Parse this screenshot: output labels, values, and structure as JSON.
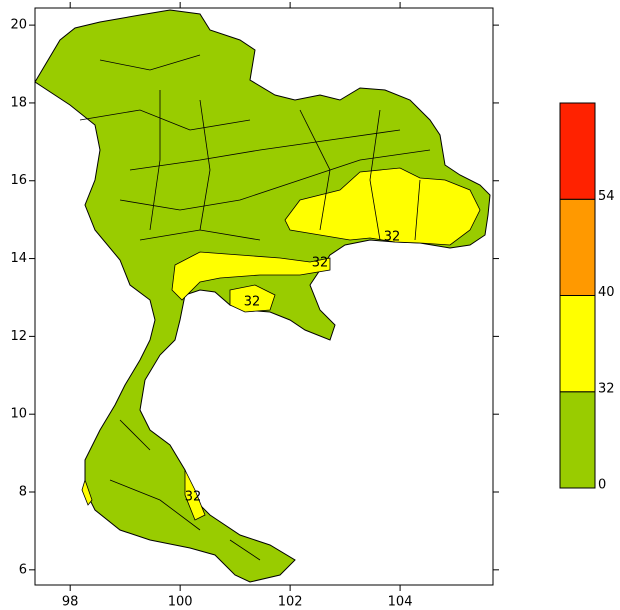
{
  "map": {
    "xlim": [
      97.36,
      105.69
    ],
    "ylim": [
      5.61,
      20.44
    ],
    "xticks": [
      98,
      100,
      102,
      104
    ],
    "yticks": [
      6,
      8,
      10,
      12,
      14,
      16,
      18,
      20
    ],
    "legend": {
      "levels": [
        0,
        32,
        40,
        54
      ],
      "colors": [
        "#99cc00",
        "#ffff00",
        "#ff9900",
        "#ff2200"
      ]
    },
    "contour_labels": [
      32,
      32,
      32,
      32
    ]
  }
}
